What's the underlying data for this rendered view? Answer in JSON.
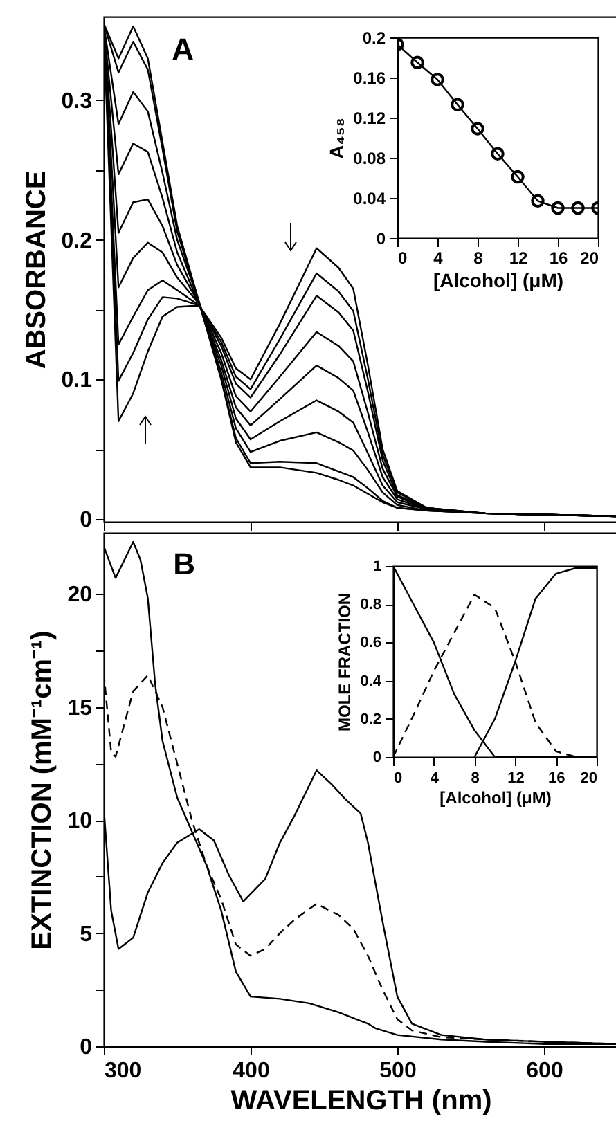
{
  "chart_data": [
    {
      "type": "line",
      "ylabel": "ABSORBANCE",
      "annotations": [
        "A"
      ],
      "color": "#000000",
      "tick_labels": "y",
      "xlim": [
        300,
        650
      ],
      "xticks": [
        {
          "value": 300,
          "label": null
        },
        {
          "value": 400,
          "label": null
        },
        {
          "value": 500,
          "label": null
        },
        {
          "value": 600,
          "label": null
        }
      ],
      "ylim": [
        -0.002,
        0.36
      ],
      "yticks": [
        0,
        {
          "value": 0.05,
          "label": null
        },
        0.1,
        {
          "value": 0.15,
          "label": null
        },
        0.2,
        {
          "value": 0.25,
          "label": null
        },
        0.3
      ],
      "x": [
        300,
        310,
        320,
        330,
        340,
        350,
        365,
        380,
        390,
        400,
        420,
        445,
        460,
        470,
        480,
        490,
        500,
        520,
        560,
        650
      ],
      "series": [
        {
          "values": [
            0.35,
            0.07,
            0.09,
            0.12,
            0.145,
            0.152,
            0.153,
            0.13,
            0.108,
            0.1,
            0.14,
            0.194,
            0.18,
            0.165,
            0.11,
            0.05,
            0.02,
            0.008,
            0.004,
            0.002
          ]
        },
        {
          "values": [
            0.351,
            0.099,
            0.119,
            0.143,
            0.159,
            0.158,
            0.153,
            0.127,
            0.102,
            0.093,
            0.129,
            0.176,
            0.163,
            0.149,
            0.1,
            0.046,
            0.019,
            0.008,
            0.004,
            0.002
          ]
        },
        {
          "values": [
            0.351,
            0.125,
            0.145,
            0.164,
            0.171,
            0.164,
            0.153,
            0.124,
            0.097,
            0.087,
            0.118,
            0.16,
            0.148,
            0.135,
            0.091,
            0.042,
            0.017,
            0.008,
            0.004,
            0.002
          ]
        },
        {
          "values": [
            0.352,
            0.166,
            0.187,
            0.198,
            0.191,
            0.173,
            0.154,
            0.119,
            0.088,
            0.077,
            0.102,
            0.134,
            0.124,
            0.113,
            0.076,
            0.036,
            0.016,
            0.007,
            0.004,
            0.002
          ]
        },
        {
          "values": [
            0.353,
            0.205,
            0.227,
            0.229,
            0.21,
            0.182,
            0.154,
            0.114,
            0.08,
            0.067,
            0.086,
            0.11,
            0.101,
            0.092,
            0.062,
            0.03,
            0.014,
            0.007,
            0.004,
            0.002
          ]
        },
        {
          "values": [
            0.353,
            0.247,
            0.269,
            0.263,
            0.23,
            0.191,
            0.154,
            0.11,
            0.072,
            0.057,
            0.07,
            0.085,
            0.077,
            0.069,
            0.047,
            0.024,
            0.012,
            0.007,
            0.004,
            0.002
          ]
        },
        {
          "values": [
            0.354,
            0.283,
            0.306,
            0.292,
            0.248,
            0.2,
            0.155,
            0.105,
            0.065,
            0.048,
            0.056,
            0.062,
            0.055,
            0.049,
            0.035,
            0.019,
            0.01,
            0.006,
            0.004,
            0.002
          ]
        },
        {
          "values": [
            0.355,
            0.32,
            0.342,
            0.322,
            0.265,
            0.206,
            0.155,
            0.101,
            0.058,
            0.04,
            0.041,
            0.04,
            0.034,
            0.03,
            0.022,
            0.013,
            0.008,
            0.006,
            0.004,
            0.002
          ]
        },
        {
          "values": [
            0.355,
            0.33,
            0.353,
            0.33,
            0.27,
            0.21,
            0.155,
            0.1,
            0.055,
            0.037,
            0.037,
            0.033,
            0.028,
            0.024,
            0.018,
            0.012,
            0.008,
            0.006,
            0.004,
            0.002
          ]
        }
      ]
    },
    {
      "type": "line",
      "marker": "circle",
      "xlabel": "[Alcohol] (μM)",
      "ylabel": "A₄₅₈",
      "color": "#000000",
      "xlim": [
        0,
        20
      ],
      "xticks": [
        0,
        4,
        8,
        12,
        16,
        20
      ],
      "ylim": [
        0,
        0.2
      ],
      "yticks": [
        0,
        0.04,
        0.08,
        0.12,
        0.16,
        0.2
      ],
      "x": [
        0,
        2,
        4,
        6,
        8,
        10,
        12,
        14,
        16,
        18,
        20
      ],
      "values": [
        0.193,
        0.175,
        0.158,
        0.133,
        0.109,
        0.084,
        0.061,
        0.037,
        0.03,
        0.03,
        0.03
      ]
    },
    {
      "type": "line",
      "xlabel": "WAVELENGTH (nm)",
      "ylabel": "EXTINCTION (mM⁻¹cm⁻¹)",
      "annotations": [
        "B"
      ],
      "color": "#000000",
      "xlim": [
        300,
        650
      ],
      "xticks": [
        300,
        400,
        500,
        600
      ],
      "ylim": [
        0,
        22.7
      ],
      "yticks": [
        0,
        {
          "value": 2.5,
          "label": null
        },
        5,
        {
          "value": 7.5,
          "label": null
        },
        10,
        {
          "value": 12.5,
          "label": null
        },
        15,
        {
          "value": 17.5,
          "label": null
        },
        20
      ],
      "series": [
        {
          "x": [
            300,
            305,
            310,
            320,
            330,
            340,
            350,
            365,
            375,
            385,
            395,
            410,
            420,
            430,
            445,
            455,
            465,
            475,
            480,
            490,
            500,
            510,
            530,
            560,
            600,
            650
          ],
          "values": [
            10.5,
            6,
            4.3,
            4.8,
            6.8,
            8.1,
            9,
            9.6,
            9.1,
            7.6,
            6.4,
            7.4,
            9,
            10.2,
            12.2,
            11.6,
            10.9,
            10.3,
            9,
            5.5,
            2.2,
            1,
            0.5,
            0.3,
            0.2,
            0.1
          ]
        },
        {
          "line_style": "dashed",
          "x": [
            300,
            305,
            308,
            315,
            320,
            330,
            340,
            350,
            360,
            370,
            380,
            390,
            400,
            410,
            420,
            430,
            445,
            460,
            470,
            480,
            490,
            500,
            510,
            530,
            560,
            600,
            650
          ],
          "values": [
            16.5,
            13,
            12.8,
            14.5,
            15.7,
            16.4,
            15,
            12.5,
            10,
            8,
            6.5,
            4.5,
            4,
            4.3,
            5,
            5.6,
            6.3,
            5.8,
            5.2,
            4,
            2.5,
            1.2,
            0.7,
            0.4,
            0.3,
            0.2,
            0.1
          ]
        },
        {
          "x": [
            300,
            308,
            320,
            325,
            330,
            335,
            340,
            350,
            360,
            370,
            380,
            390,
            400,
            420,
            440,
            460,
            480,
            485,
            500,
            530,
            560,
            600,
            650
          ],
          "values": [
            22.1,
            20.7,
            22.3,
            21.5,
            19.8,
            16,
            13.5,
            11,
            9.5,
            8,
            6,
            3.3,
            2.2,
            2.1,
            1.9,
            1.5,
            1,
            0.8,
            0.5,
            0.3,
            0.2,
            0.1,
            0.1
          ]
        }
      ]
    },
    {
      "type": "line",
      "xlabel": "[Alcohol] (μM)",
      "ylabel": "MOLE FRACTION",
      "color": "#000000",
      "xlim": [
        0,
        20
      ],
      "xticks": [
        0,
        4,
        8,
        12,
        16,
        20
      ],
      "ylim": [
        0,
        1
      ],
      "yticks": [
        0,
        0.2,
        0.4,
        0.6,
        0.8,
        1
      ],
      "x": [
        0,
        2,
        4,
        6,
        8,
        10,
        12,
        14,
        16,
        18,
        20
      ],
      "series": [
        {
          "values": [
            1,
            0.8,
            0.6,
            0.33,
            0.14,
            0,
            0,
            0,
            0,
            0,
            0
          ]
        },
        {
          "line_style": "dashed",
          "values": [
            0,
            0.22,
            0.45,
            0.65,
            0.85,
            0.78,
            0.5,
            0.18,
            0.03,
            0,
            0
          ]
        },
        {
          "values": [
            null,
            null,
            null,
            null,
            0,
            0.2,
            0.5,
            0.83,
            0.96,
            0.99,
            0.99
          ]
        }
      ]
    }
  ]
}
